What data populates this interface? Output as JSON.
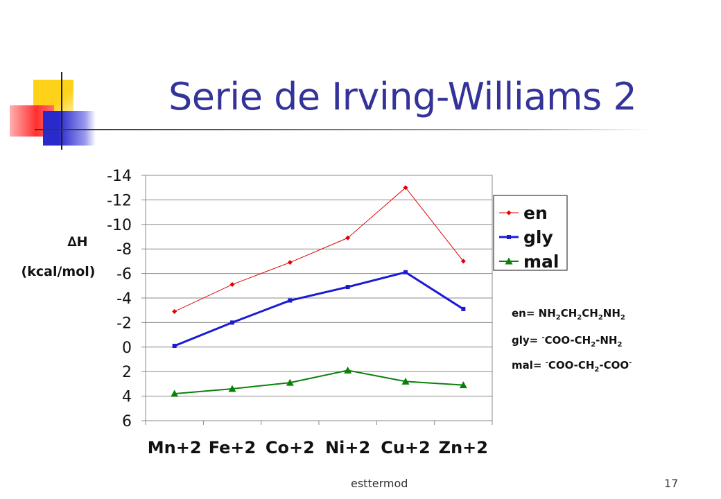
{
  "slide": {
    "title": "Serie de Irving-Williams 2",
    "footer_text": "esttermod",
    "page_number": "17"
  },
  "ylabel": {
    "symbol": "∆H",
    "unit": "(kcal/mol)"
  },
  "formulas": {
    "en": {
      "lhs": "en=",
      "parts": [
        "NH",
        "2",
        "CH",
        "2",
        "CH",
        "2",
        "NH",
        "2"
      ]
    },
    "gly": {
      "lhs": "gly=",
      "pre_sup": "-",
      "parts": [
        "COO-CH",
        "2",
        "-NH",
        "2"
      ]
    },
    "mal": {
      "lhs": "mal=",
      "pre_sup": "-",
      "parts": [
        "COO-CH",
        "2",
        "-COO"
      ],
      "post_sup": "-"
    }
  },
  "chart_data": {
    "type": "line",
    "categories": [
      "Mn+2",
      "Fe+2",
      "Co+2",
      "Ni+2",
      "Cu+2",
      "Zn+2"
    ],
    "y_axis_reversed": true,
    "ylim": [
      -14,
      6
    ],
    "yticks": [
      -14,
      -12,
      -10,
      -8,
      -6,
      -4,
      -2,
      0,
      2,
      4,
      6
    ],
    "grid": true,
    "legend_position": "right",
    "series": [
      {
        "name": "en",
        "color": "#e00000",
        "marker": "diamond",
        "values": [
          -2.9,
          -5.1,
          -6.9,
          -8.9,
          -13.0,
          -7.0
        ]
      },
      {
        "name": "gly",
        "color": "#1a1ad6",
        "marker": "square",
        "values": [
          -0.1,
          -2.0,
          -3.8,
          -4.9,
          -6.1,
          -3.1
        ]
      },
      {
        "name": "mal",
        "color": "#0a800a",
        "marker": "triangle",
        "values": [
          3.8,
          3.4,
          2.9,
          1.9,
          2.8,
          3.1
        ]
      }
    ]
  }
}
